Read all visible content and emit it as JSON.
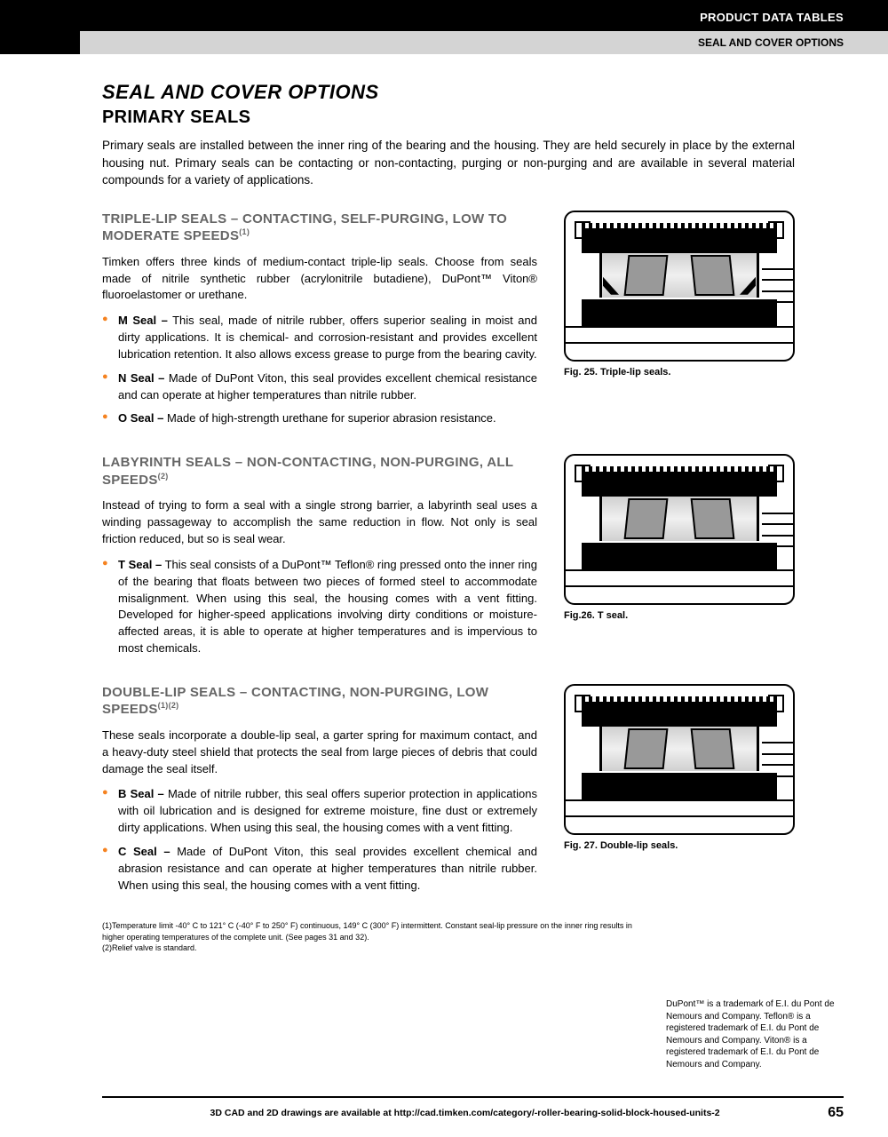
{
  "header": {
    "black": "PRODUCT DATA TABLES",
    "gray": "SEAL AND COVER OPTIONS"
  },
  "title": {
    "main": "SEAL AND COVER OPTIONS",
    "sub": "PRIMARY SEALS"
  },
  "intro": "Primary seals are installed between the inner ring of the bearing and the housing. They are held securely in place by the external housing nut. Primary seals can be contacting or non-contacting, purging or non-purging and are available in several material compounds for a variety of applications.",
  "sections": {
    "triple": {
      "title": "TRIPLE-LIP SEALS – CONTACTING, SELF-PURGING, LOW TO MODERATE SPEEDS",
      "sup": "(1)",
      "body": "Timken offers three kinds of medium-contact triple-lip seals. Choose from seals made of nitrile synthetic rubber (acrylonitrile butadiene), DuPont™ Viton® fluoroelastomer or urethane.",
      "items": {
        "m": "M Seal – This seal, made of nitrile rubber, offers superior sealing in moist and dirty applications. It is chemical- and corrosion-resistant and provides excellent lubrication retention. It also allows excess grease to purge from the bearing cavity.",
        "n": "N Seal – Made of DuPont Viton, this seal provides excellent chemical resistance and can operate at higher temperatures than nitrile rubber.",
        "o": "O Seal – Made of high-strength urethane for superior abrasion resistance."
      },
      "caption": "Fig. 25. Triple-lip seals."
    },
    "labyrinth": {
      "title": "LABYRINTH SEALS – NON-CONTACTING, NON-PURGING, ALL SPEEDS",
      "sup": "(2)",
      "body": "Instead of trying to form a seal with a single strong barrier, a labyrinth seal uses a winding passageway to accomplish the same reduction in flow. Not only is seal friction reduced, but so is seal wear.",
      "items": {
        "t": "T Seal – This seal consists of a DuPont™ Teflon® ring pressed onto the inner ring of the bearing that floats between two pieces of formed steel to accommodate misalignment. When using this seal, the housing comes with a vent fitting. Developed for higher-speed applications involving dirty conditions or moisture-affected areas, it is able to operate at higher temperatures and is impervious to most chemicals."
      },
      "caption": "Fig.26. T seal."
    },
    "double": {
      "title": "DOUBLE-LIP SEALS – CONTACTING, NON-PURGING, LOW SPEEDS",
      "sup": "(1)(2)",
      "body": "These seals incorporate a double-lip seal, a garter spring for maximum contact, and a heavy-duty steel shield that protects the seal from large pieces of debris that could damage the seal itself.",
      "items": {
        "b": "B Seal – Made of nitrile rubber, this seal offers superior protection in applications with oil lubrication and is designed for extreme moisture, fine dust or extremely dirty applications. When using this seal, the housing comes with a vent fitting.",
        "c": "C Seal – Made of DuPont Viton, this seal provides excellent chemical and abrasion resistance and can operate at higher temperatures than nitrile rubber. When using this seal, the housing comes with a vent fitting."
      },
      "caption": "Fig. 27. Double-lip seals."
    }
  },
  "footnotes": {
    "f1": "(1)Temperature limit -40° C to 121° C (-40° F to 250° F) continuous, 149° C (300° F) intermittent. Constant seal-lip pressure on the inner ring results in higher operating temperatures of the complete unit. (See pages 31 and 32).",
    "f2": "(2)Relief valve is standard."
  },
  "trademark": "DuPont™ is a trademark of E.I. du Pont de Nemours and Company. Teflon® is a registered trademark of E.I. du Pont de Nemours and Company. Viton® is a registered trademark of E.I. du Pont de Nemours and Company.",
  "footer": {
    "text": "3D CAD and 2D drawings are available at http://cad.timken.com/category/-roller-bearing-solid-block-housed-units-2",
    "page": "65"
  },
  "colors": {
    "bullet": "#f58220",
    "section_title": "#666666"
  }
}
